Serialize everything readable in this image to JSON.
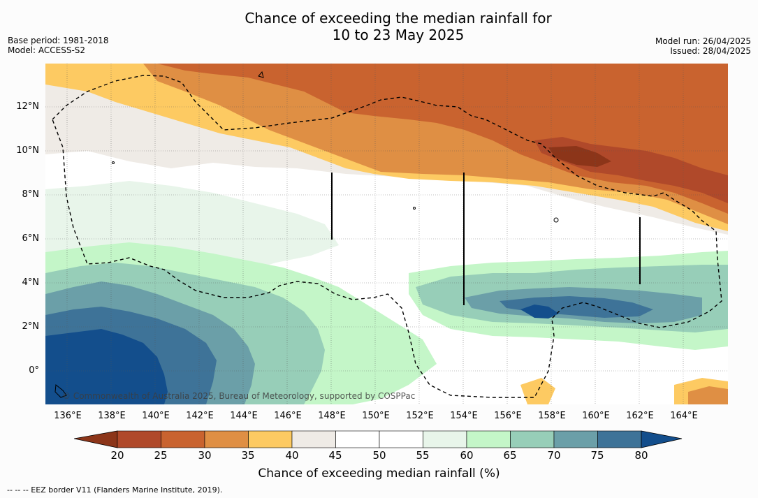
{
  "header": {
    "title_line1": "Chance of exceeding the median rainfall for",
    "title_line2": "10 to 23 May 2025",
    "base_period": "Base period: 1981-2018",
    "model": "Model: ACCESS-S2",
    "model_run": "Model run: 26/04/2025",
    "issued": "Issued: 28/04/2025"
  },
  "map": {
    "lat_labels": [
      "12°N",
      "10°N",
      "8°N",
      "6°N",
      "4°N",
      "2°N",
      "0°"
    ],
    "lon_labels": [
      "136°E",
      "138°E",
      "140°E",
      "142°E",
      "144°E",
      "146°E",
      "148°E",
      "150°E",
      "152°E",
      "154°E",
      "156°E",
      "158°E",
      "160°E",
      "162°E",
      "164°E"
    ],
    "copyright": "© Commonwealth of Australia 2025, Bureau of Meteorology, supported by COSPPac"
  },
  "colorbar": {
    "ticks": [
      "20",
      "25",
      "30",
      "35",
      "40",
      "45",
      "50",
      "55",
      "60",
      "65",
      "70",
      "75",
      "80"
    ],
    "colors": {
      "lt20": "#8c3519",
      "20-25": "#b0492a",
      "25-30": "#c9632f",
      "30-35": "#df8f44",
      "35-40": "#fdca62",
      "40-45": "#efebe6",
      "45-50": "#ffffff",
      "50-55": "#ffffff",
      "55-60": "#e8f5ea",
      "60-65": "#c4f6c8",
      "65-70": "#97ceb8",
      "70-75": "#6b9fa8",
      "75-80": "#3e7398",
      "gt80": "#134e8c"
    },
    "label": "Chance of exceeding median rainfall (%)"
  },
  "legend": {
    "eez_line": "--  --  -- EEZ border V11 (Flanders Marine Institute, 2019)."
  }
}
